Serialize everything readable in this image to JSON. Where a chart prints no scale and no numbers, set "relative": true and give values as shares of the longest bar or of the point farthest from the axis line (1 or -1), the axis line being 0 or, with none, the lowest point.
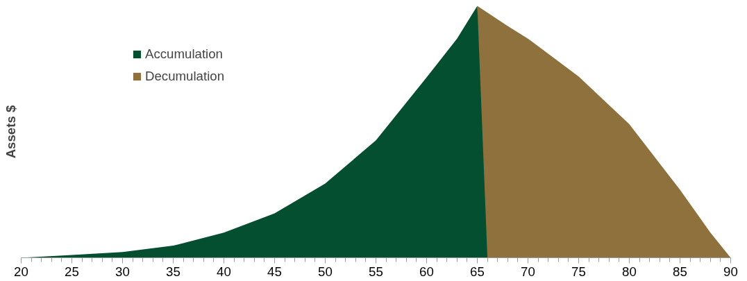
{
  "chart_data": {
    "type": "area",
    "relative": true,
    "ylabel": "Assets $",
    "legend": "top left",
    "grid": false,
    "xlim": [
      20,
      90
    ],
    "xticks": [
      20,
      {
        "value": 21,
        "label": null
      },
      {
        "value": 22,
        "label": null
      },
      {
        "value": 23,
        "label": null
      },
      {
        "value": 24,
        "label": null
      },
      25,
      {
        "value": 26,
        "label": null
      },
      {
        "value": 27,
        "label": null
      },
      {
        "value": 28,
        "label": null
      },
      {
        "value": 29,
        "label": null
      },
      30,
      {
        "value": 31,
        "label": null
      },
      {
        "value": 32,
        "label": null
      },
      {
        "value": 33,
        "label": null
      },
      {
        "value": 34,
        "label": null
      },
      35,
      {
        "value": 36,
        "label": null
      },
      {
        "value": 37,
        "label": null
      },
      {
        "value": 38,
        "label": null
      },
      {
        "value": 39,
        "label": null
      },
      40,
      {
        "value": 41,
        "label": null
      },
      {
        "value": 42,
        "label": null
      },
      {
        "value": 43,
        "label": null
      },
      {
        "value": 44,
        "label": null
      },
      45,
      {
        "value": 46,
        "label": null
      },
      {
        "value": 47,
        "label": null
      },
      {
        "value": 48,
        "label": null
      },
      {
        "value": 49,
        "label": null
      },
      50,
      {
        "value": 51,
        "label": null
      },
      {
        "value": 52,
        "label": null
      },
      {
        "value": 53,
        "label": null
      },
      {
        "value": 54,
        "label": null
      },
      55,
      {
        "value": 56,
        "label": null
      },
      {
        "value": 57,
        "label": null
      },
      {
        "value": 58,
        "label": null
      },
      {
        "value": 59,
        "label": null
      },
      60,
      {
        "value": 61,
        "label": null
      },
      {
        "value": 62,
        "label": null
      },
      {
        "value": 63,
        "label": null
      },
      {
        "value": 64,
        "label": null
      },
      65,
      {
        "value": 66,
        "label": null
      },
      {
        "value": 67,
        "label": null
      },
      {
        "value": 68,
        "label": null
      },
      {
        "value": 69,
        "label": null
      },
      70,
      {
        "value": 71,
        "label": null
      },
      {
        "value": 72,
        "label": null
      },
      {
        "value": 73,
        "label": null
      },
      {
        "value": 74,
        "label": null
      },
      75,
      {
        "value": 76,
        "label": null
      },
      {
        "value": 77,
        "label": null
      },
      {
        "value": 78,
        "label": null
      },
      {
        "value": 79,
        "label": null
      },
      80,
      {
        "value": 81,
        "label": null
      },
      {
        "value": 82,
        "label": null
      },
      {
        "value": 83,
        "label": null
      },
      {
        "value": 84,
        "label": null
      },
      85,
      {
        "value": 86,
        "label": null
      },
      {
        "value": 87,
        "label": null
      },
      {
        "value": 88,
        "label": null
      },
      {
        "value": 89,
        "label": null
      },
      90
    ],
    "series": [
      {
        "name": "Accumulation",
        "color": "#034f30",
        "x": [
          20,
          25,
          30,
          35,
          40,
          45,
          50,
          55,
          60,
          63,
          65,
          66
        ],
        "values": [
          0,
          0.011,
          0.023,
          0.048,
          0.1,
          0.176,
          0.295,
          0.466,
          0.716,
          0.87,
          1,
          0
        ]
      },
      {
        "name": "Decumulation",
        "color": "#8e713c",
        "x": [
          65,
          68,
          70,
          75,
          80,
          85,
          88,
          90
        ],
        "values": [
          1,
          0.92,
          0.87,
          0.72,
          0.53,
          0.27,
          0.1,
          0
        ]
      }
    ]
  }
}
